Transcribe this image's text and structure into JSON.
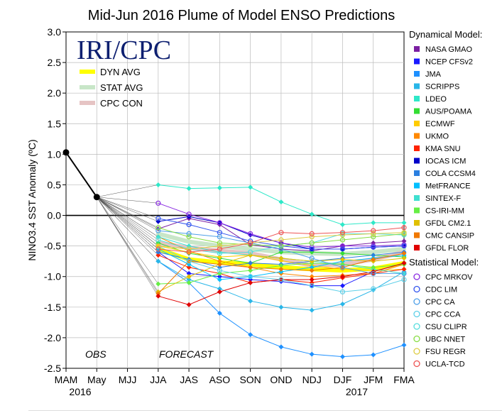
{
  "chart_data": {
    "type": "line",
    "title": "Mid-Jun 2016 Plume of Model ENSO Predictions",
    "ylabel": "NINO3.4 SST Anomaly (ºC)",
    "xlabel": "",
    "ylim": [
      -2.5,
      3.0
    ],
    "yticks": [
      "3.0",
      "2.5",
      "2.0",
      "1.5",
      "1.0",
      "0.5",
      "0.0",
      "-0.5",
      "-1.0",
      "-1.5",
      "-2.0",
      "-2.5"
    ],
    "categories": [
      "MAM",
      "May",
      "MJJ",
      "JJA",
      "JAS",
      "ASO",
      "SON",
      "OND",
      "NDJ",
      "DJF",
      "JFM",
      "FMA"
    ],
    "year_labels": [
      {
        "text": "2016",
        "at": "MAM"
      },
      {
        "text": "2017",
        "at": "DJF"
      }
    ],
    "logo": "IRI/CPC",
    "obs_label": "OBS",
    "forecast_label": "FORECAST",
    "observed": {
      "x": [
        "MAM",
        "May"
      ],
      "values": [
        1.03,
        0.3
      ],
      "color": "#000000"
    },
    "averages": [
      {
        "name": "DYN AVG",
        "color": "#ffff00",
        "values": [
          -0.55,
          -0.72,
          -0.77,
          -0.8,
          -0.85,
          -0.88,
          -0.9,
          -0.87,
          -0.78
        ]
      },
      {
        "name": "STAT AVG",
        "color": "#c8e6c8",
        "values": [
          -0.3,
          -0.43,
          -0.5,
          -0.55,
          -0.6,
          -0.62,
          -0.63,
          -0.6,
          -0.55
        ]
      },
      {
        "name": "CPC CON",
        "color": "#e6c4c4",
        "values": [
          -0.45,
          -0.53,
          -0.58,
          -0.62,
          -0.72,
          -0.82,
          -0.8,
          -0.72,
          -0.6
        ]
      }
    ],
    "dynamical_header": "Dynamical Model:",
    "statistical_header": "Statistical Model:",
    "dynamical": [
      {
        "name": "NASA GMAO",
        "color": "#7b1fa2",
        "values": [
          -0.22,
          -0.05,
          -0.15,
          -0.48,
          -0.55,
          -0.58,
          -0.5,
          -0.45,
          -0.42
        ]
      },
      {
        "name": "NCEP CFSv2",
        "color": "#1a1aff",
        "values": [
          -0.6,
          -0.95,
          -1.0,
          -1.05,
          -1.08,
          -1.15,
          -1.15,
          -0.92,
          -0.78
        ]
      },
      {
        "name": "JMA",
        "color": "#1e90ff",
        "values": [
          -0.75,
          -1.1,
          -1.6,
          -1.95,
          -2.15,
          -2.27,
          -2.31,
          -2.28,
          -2.12
        ]
      },
      {
        "name": "SCRIPPS",
        "color": "#29b6e8",
        "values": [
          -0.75,
          -1.05,
          -1.2,
          -1.4,
          -1.5,
          -1.55,
          -1.45,
          -1.22,
          -0.92
        ]
      },
      {
        "name": "LDEO",
        "color": "#2ee8c8",
        "values": [
          0.5,
          0.44,
          0.45,
          0.46,
          0.22,
          0.02,
          -0.15,
          -0.12,
          -0.12
        ]
      },
      {
        "name": "AUS/POAMA",
        "color": "#33dd33",
        "values": [
          -0.45,
          -0.62,
          -0.7,
          -0.78,
          -0.6,
          -0.6,
          -0.62,
          -0.65,
          -0.68
        ]
      },
      {
        "name": "ECMWF",
        "color": "#ffcc00",
        "values": [
          -0.5,
          -0.6,
          -0.68,
          -0.65,
          -0.74,
          -0.82,
          -0.88,
          -0.9,
          -0.88
        ]
      },
      {
        "name": "UKMO",
        "color": "#ff8800",
        "values": [
          -0.35,
          -0.58,
          -0.75,
          -0.85,
          -0.95,
          -1.0,
          -0.98,
          -0.95,
          -0.8
        ]
      },
      {
        "name": "KMA SNU",
        "color": "#ff2200",
        "values": [
          -0.65,
          -0.85,
          -0.95,
          -1.1,
          -1.05,
          -1.1,
          -1.02,
          -0.95,
          -0.88
        ]
      },
      {
        "name": "IOCAS ICM",
        "color": "#0000c8",
        "values": [
          -0.1,
          -0.02,
          -0.12,
          -0.32,
          -0.45,
          -0.55,
          -0.55,
          -0.52,
          -0.5
        ]
      },
      {
        "name": "COLA CCSM4",
        "color": "#2b7fe0",
        "values": [
          -0.6,
          -0.72,
          -0.85,
          -0.78,
          -0.8,
          -0.75,
          -0.7,
          -0.65,
          -0.6
        ]
      },
      {
        "name": "MetFRANCE",
        "color": "#00bfff",
        "values": [
          -0.55,
          -0.8,
          -1.05,
          -1.0,
          -0.92,
          -0.85,
          -0.75,
          -0.7,
          -0.65
        ]
      },
      {
        "name": "SINTEX-F",
        "color": "#40e0d0",
        "values": [
          -0.35,
          -0.5,
          -0.6,
          -0.65,
          -0.7,
          -0.75,
          -0.8,
          -0.88,
          -0.95
        ]
      },
      {
        "name": "CS-IRI-MM",
        "color": "#66ee44",
        "values": [
          -1.12,
          -1.1,
          -0.95,
          -0.9,
          -0.82,
          -0.78,
          -0.8,
          -0.85,
          -0.8
        ]
      },
      {
        "name": "GFDL CM2.1",
        "color": "#e0c000",
        "values": [
          -1.25,
          -1.0,
          -0.8,
          -0.65,
          -0.7,
          -0.75,
          -0.72,
          -0.75,
          -0.7
        ]
      },
      {
        "name": "CMC CANSIP",
        "color": "#f07800",
        "values": [
          -1.28,
          -0.75,
          -0.8,
          -0.85,
          -0.88,
          -0.9,
          -0.85,
          -0.72,
          -0.62
        ]
      },
      {
        "name": "GFDL FLOR",
        "color": "#e00000",
        "values": [
          -1.32,
          -1.46,
          -1.25,
          -1.1,
          -1.05,
          -1.05,
          -1.0,
          -0.92,
          -0.78
        ]
      }
    ],
    "statistical": [
      {
        "name": "CPC MRKOV",
        "color": "#8a2be2",
        "values": [
          0.2,
          0.02,
          -0.12,
          -0.3,
          -0.45,
          -0.52,
          -0.5,
          -0.5,
          -0.48
        ]
      },
      {
        "name": "CDC LIM",
        "color": "#3355ee",
        "values": [
          -0.05,
          -0.15,
          -0.28,
          -0.42,
          -0.5,
          -0.55,
          -0.55,
          -0.52,
          -0.5
        ]
      },
      {
        "name": "CPC CA",
        "color": "#4fa0e8",
        "values": [
          -0.25,
          -0.3,
          -0.35,
          -0.45,
          -0.55,
          -0.7,
          -0.85,
          -0.95,
          -0.95
        ]
      },
      {
        "name": "CPC CCA",
        "color": "#5fd0e8",
        "values": [
          -0.5,
          -0.75,
          -0.9,
          -1.0,
          -1.05,
          -1.15,
          -1.25,
          -1.2,
          -1.05
        ]
      },
      {
        "name": "CSU CLIPR",
        "color": "#55dddd",
        "values": [
          -0.4,
          -0.55,
          -0.62,
          -0.6,
          -0.5,
          -0.45,
          -0.3,
          -0.3,
          -0.32
        ]
      },
      {
        "name": "UBC NNET",
        "color": "#88dd44",
        "values": [
          -0.2,
          -0.35,
          -0.45,
          -0.48,
          -0.5,
          -0.45,
          -0.4,
          -0.35,
          -0.3
        ]
      },
      {
        "name": "FSU REGR",
        "color": "#ddcc44",
        "values": [
          -0.5,
          -0.55,
          -0.5,
          -0.45,
          -0.4,
          -0.35,
          -0.32,
          -0.3,
          -0.28
        ]
      },
      {
        "name": "UCLA-TCD",
        "color": "#ee5555",
        "values": [
          -0.55,
          -0.6,
          -0.55,
          -0.45,
          -0.28,
          -0.3,
          -0.28,
          -0.25,
          -0.2
        ]
      }
    ]
  }
}
